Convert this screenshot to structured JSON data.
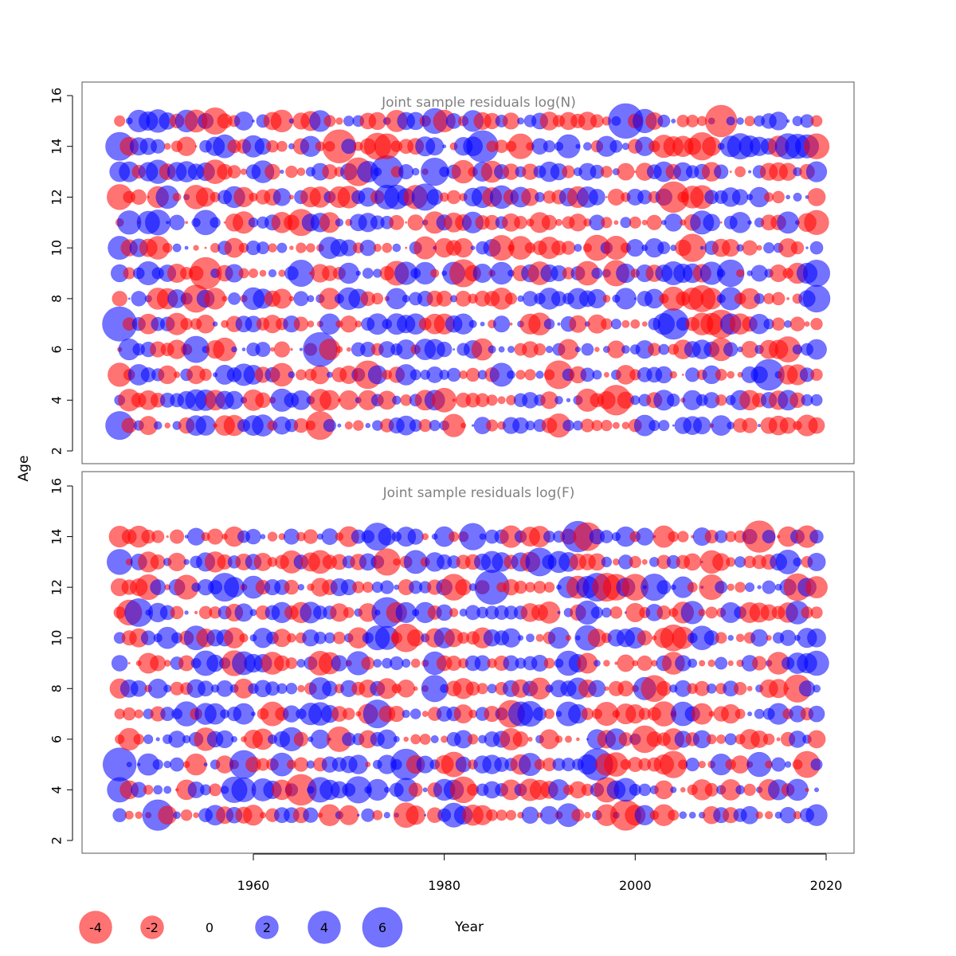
{
  "chart_data": {
    "type": "bubble",
    "panels": [
      {
        "title": "Joint sample residuals log(N)",
        "ages": [
          3,
          4,
          5,
          6,
          7,
          8,
          9,
          10,
          11,
          12,
          13,
          14,
          15
        ],
        "ylim": [
          2,
          16
        ],
        "yticks": [
          2,
          4,
          6,
          8,
          10,
          12,
          14,
          16
        ],
        "seed": 12345,
        "notable_residuals": [
          {
            "year": 1969,
            "age": 14,
            "value": -4.2
          },
          {
            "year": 1967,
            "age": 6,
            "value": 4.4
          },
          {
            "year": 1974,
            "age": 13,
            "value": 4.0
          },
          {
            "year": 1999,
            "age": 15,
            "value": 4.6
          },
          {
            "year": 2004,
            "age": 12,
            "value": -3.6
          },
          {
            "year": 2004,
            "age": 7,
            "value": 3.6
          },
          {
            "year": 2009,
            "age": 15,
            "value": -3.8
          },
          {
            "year": 1984,
            "age": 14,
            "value": 3.8
          },
          {
            "year": 1946,
            "age": 7,
            "value": 4.5
          },
          {
            "year": 1955,
            "age": 9,
            "value": -3.8
          },
          {
            "year": 1998,
            "age": 4,
            "value": -3.4
          },
          {
            "year": 2014,
            "age": 5,
            "value": 3.6
          },
          {
            "year": 1967,
            "age": 3,
            "value": -3.0
          }
        ]
      },
      {
        "title": "Joint sample residuals log(F)",
        "ages": [
          3,
          4,
          5,
          6,
          7,
          8,
          9,
          10,
          11,
          12,
          13,
          14
        ],
        "ylim": [
          2,
          16
        ],
        "yticks": [
          2,
          4,
          6,
          8,
          10,
          12,
          14,
          16
        ],
        "seed": 67890,
        "notable_residuals": [
          {
            "year": 1985,
            "age": 12,
            "value": 4.5
          },
          {
            "year": 1946,
            "age": 5,
            "value": 4.2
          },
          {
            "year": 1994,
            "age": 14,
            "value": 3.6
          },
          {
            "year": 2013,
            "age": 14,
            "value": -3.8
          },
          {
            "year": 1965,
            "age": 4,
            "value": -3.6
          },
          {
            "year": 1996,
            "age": 5,
            "value": 3.8
          },
          {
            "year": 1999,
            "age": 3,
            "value": -3.5
          },
          {
            "year": 1950,
            "age": 3,
            "value": 3.6
          },
          {
            "year": 1974,
            "age": 11,
            "value": 3.5
          },
          {
            "year": 1976,
            "age": 5,
            "value": 3.6
          }
        ]
      }
    ],
    "x": {
      "years_range": [
        1946,
        2019
      ],
      "xlim": [
        1942.5,
        2022.5
      ],
      "xticks": [
        1960,
        1980,
        2000,
        2020
      ]
    },
    "ylabel": "Age",
    "xlabel": "Year",
    "colors": {
      "positive": "#0000ff",
      "negative": "#ff0000",
      "opacity": 0.55,
      "frame": "#555555"
    },
    "legend": {
      "values": [
        -4,
        -2,
        0,
        2,
        4,
        6
      ],
      "labels": [
        "-4",
        "-2",
        "0",
        "2",
        "4",
        "6"
      ]
    }
  }
}
